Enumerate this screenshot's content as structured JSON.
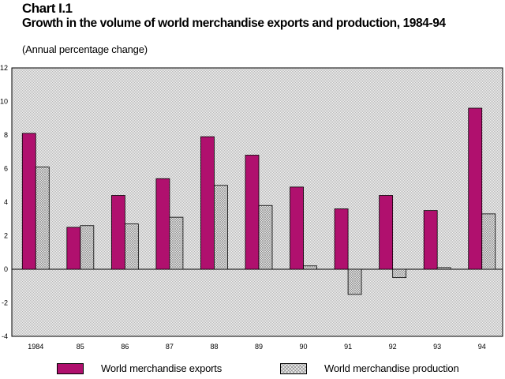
{
  "header": {
    "number": "Chart I.1",
    "title": "Growth in the volume of world merchandise exports  and production, 1984-94",
    "subtitle": "(Annual percentage change)"
  },
  "colors": {
    "exports": "#b0106e",
    "production": "#e6e6e6",
    "plot_background": "#e4e4e4"
  },
  "legend": [
    {
      "label": "World merchandise exports",
      "icon": "solid-swatch"
    },
    {
      "label": "World merchandise production",
      "icon": "hatched-swatch"
    }
  ],
  "chart_data": {
    "type": "bar",
    "title": "Growth in the volume of world merchandise exports  and production, 1984-94",
    "subtitle": "(Annual percentage change)",
    "categories": [
      "1984",
      "85",
      "86",
      "87",
      "88",
      "89",
      "90",
      "91",
      "92",
      "93",
      "94"
    ],
    "series": [
      {
        "name": "World merchandise exports",
        "values": [
          8.1,
          2.5,
          4.4,
          5.4,
          7.9,
          6.8,
          4.9,
          3.6,
          4.4,
          3.5,
          9.6
        ]
      },
      {
        "name": "World merchandise production",
        "values": [
          6.1,
          2.6,
          2.7,
          3.1,
          5.0,
          3.8,
          0.2,
          -1.5,
          -0.5,
          0.1,
          3.3
        ]
      }
    ],
    "ylim": [
      -4,
      12
    ],
    "yticks": [
      "-4",
      "-2",
      "0",
      "2",
      "4",
      "6",
      "8",
      "10",
      "12"
    ],
    "xlabel": "",
    "ylabel": "",
    "grid": false,
    "legend_position": "bottom"
  }
}
